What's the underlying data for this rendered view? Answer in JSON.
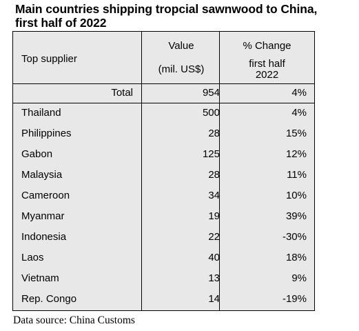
{
  "chart_data": {
    "type": "table",
    "title_lines": [
      "Main countries shipping tropcial sawnwood to China,",
      "first half of 2022"
    ],
    "columns": {
      "supplier": "Top supplier",
      "value_line1": "Value",
      "value_line2": "(mil. US$)",
      "change_line1": "% Change",
      "change_line2": "first half",
      "change_line3": "2022"
    },
    "total": {
      "label": "Total",
      "value": "954",
      "change": "4%"
    },
    "rows": [
      {
        "supplier": "Thailand",
        "value": "500",
        "change": "4%"
      },
      {
        "supplier": "Philippines",
        "value": "28",
        "change": "15%"
      },
      {
        "supplier": "Gabon",
        "value": "125",
        "change": "12%"
      },
      {
        "supplier": "Malaysia",
        "value": "28",
        "change": "11%"
      },
      {
        "supplier": "Cameroon",
        "value": "34",
        "change": "10%"
      },
      {
        "supplier": "Myanmar",
        "value": "19",
        "change": "39%"
      },
      {
        "supplier": "Indonesia",
        "value": "22",
        "change": "-30%"
      },
      {
        "supplier": "Laos",
        "value": "40",
        "change": "18%"
      },
      {
        "supplier": "Vietnam",
        "value": "13",
        "change": "9%"
      },
      {
        "supplier": "Rep. Congo",
        "value": "14",
        "change": "-19%"
      }
    ],
    "source": "Data source: China Customs",
    "colors": {
      "table_background": "#e8e8e8",
      "border": "#000000"
    }
  }
}
